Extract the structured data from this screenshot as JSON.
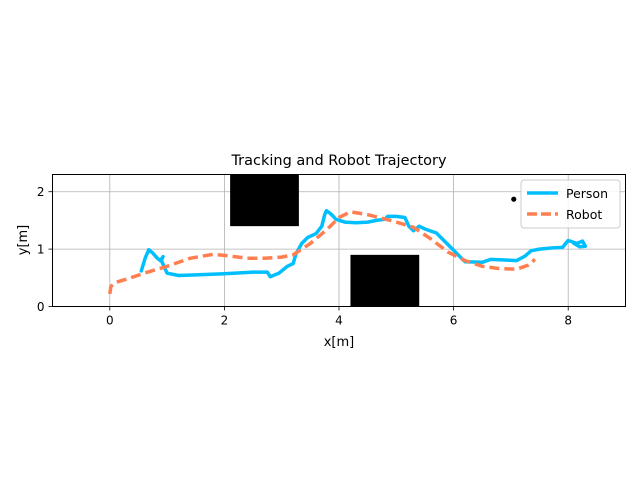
{
  "chart_data": {
    "type": "line",
    "title": "Tracking and Robot Trajectory",
    "xlabel": "x[m]",
    "ylabel": "y[m]",
    "xlim": [
      -1,
      9
    ],
    "ylim": [
      0,
      2.3
    ],
    "xticks": [
      0,
      2,
      4,
      6,
      8
    ],
    "yticks": [
      0,
      1,
      2
    ],
    "grid": true,
    "legend_position": "top-right",
    "series": [
      {
        "name": "Person",
        "color": "#00bfff",
        "style": "solid",
        "points": [
          [
            0.55,
            0.62
          ],
          [
            0.62,
            0.85
          ],
          [
            0.68,
            0.99
          ],
          [
            0.75,
            0.93
          ],
          [
            0.82,
            0.85
          ],
          [
            0.88,
            0.8
          ],
          [
            0.93,
            0.87
          ],
          [
            0.9,
            0.8
          ],
          [
            1.0,
            0.58
          ],
          [
            1.2,
            0.54
          ],
          [
            1.5,
            0.55
          ],
          [
            2.0,
            0.57
          ],
          [
            2.5,
            0.6
          ],
          [
            2.75,
            0.6
          ],
          [
            2.8,
            0.52
          ],
          [
            2.95,
            0.58
          ],
          [
            3.1,
            0.7
          ],
          [
            3.2,
            0.75
          ],
          [
            3.25,
            0.92
          ],
          [
            3.35,
            1.1
          ],
          [
            3.45,
            1.2
          ],
          [
            3.6,
            1.27
          ],
          [
            3.7,
            1.4
          ],
          [
            3.75,
            1.6
          ],
          [
            3.78,
            1.67
          ],
          [
            3.85,
            1.62
          ],
          [
            3.95,
            1.52
          ],
          [
            4.1,
            1.47
          ],
          [
            4.3,
            1.46
          ],
          [
            4.5,
            1.47
          ],
          [
            4.65,
            1.5
          ],
          [
            4.8,
            1.52
          ],
          [
            4.85,
            1.57
          ],
          [
            5.0,
            1.57
          ],
          [
            5.15,
            1.55
          ],
          [
            5.22,
            1.4
          ],
          [
            5.3,
            1.32
          ],
          [
            5.4,
            1.4
          ],
          [
            5.5,
            1.35
          ],
          [
            5.7,
            1.28
          ],
          [
            5.9,
            1.08
          ],
          [
            6.1,
            0.88
          ],
          [
            6.2,
            0.78
          ],
          [
            6.5,
            0.77
          ],
          [
            6.65,
            0.82
          ],
          [
            6.9,
            0.81
          ],
          [
            7.1,
            0.8
          ],
          [
            7.25,
            0.88
          ],
          [
            7.35,
            0.97
          ],
          [
            7.5,
            1.0
          ],
          [
            7.7,
            1.02
          ],
          [
            7.9,
            1.03
          ],
          [
            8.0,
            1.15
          ],
          [
            8.15,
            1.1
          ],
          [
            8.25,
            1.14
          ],
          [
            8.3,
            1.05
          ],
          [
            8.2,
            1.04
          ],
          [
            8.1,
            1.1
          ]
        ]
      },
      {
        "name": "Robot",
        "color": "#ff7f50",
        "style": "dashed",
        "points": [
          [
            0.0,
            0.22
          ],
          [
            0.02,
            0.35
          ],
          [
            0.1,
            0.42
          ],
          [
            0.3,
            0.48
          ],
          [
            0.6,
            0.58
          ],
          [
            1.0,
            0.7
          ],
          [
            1.4,
            0.84
          ],
          [
            1.8,
            0.91
          ],
          [
            2.1,
            0.88
          ],
          [
            2.4,
            0.84
          ],
          [
            2.7,
            0.84
          ],
          [
            3.0,
            0.86
          ],
          [
            3.2,
            0.9
          ],
          [
            3.5,
            1.1
          ],
          [
            3.8,
            1.35
          ],
          [
            4.0,
            1.55
          ],
          [
            4.2,
            1.65
          ],
          [
            4.5,
            1.6
          ],
          [
            4.9,
            1.5
          ],
          [
            5.3,
            1.38
          ],
          [
            5.6,
            1.18
          ],
          [
            5.9,
            0.95
          ],
          [
            6.2,
            0.8
          ],
          [
            6.5,
            0.7
          ],
          [
            6.8,
            0.66
          ],
          [
            7.1,
            0.65
          ],
          [
            7.3,
            0.72
          ],
          [
            7.42,
            0.82
          ]
        ]
      }
    ],
    "obstacles": [
      {
        "x": [
          2.1,
          3.3
        ],
        "y": [
          1.4,
          2.3
        ]
      },
      {
        "x": [
          4.2,
          5.4
        ],
        "y": [
          0.0,
          0.9
        ]
      }
    ],
    "markers": [
      {
        "x": 7.05,
        "y": 1.87,
        "color": "#000000"
      }
    ]
  }
}
